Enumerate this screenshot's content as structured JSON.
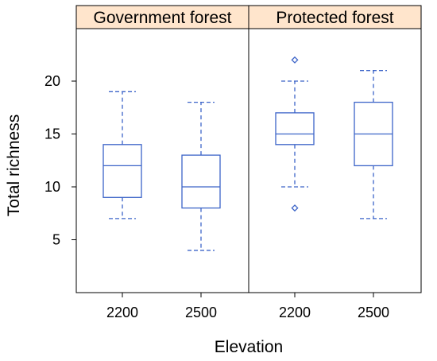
{
  "chart_data": {
    "type": "box",
    "xlabel": "Elevation",
    "ylabel": "Total richness",
    "ylim": [
      0,
      25
    ],
    "yticks": [
      5,
      10,
      15,
      20
    ],
    "grid": false,
    "categories": [
      "2200",
      "2500"
    ],
    "panels": [
      {
        "name": "Government forest",
        "boxes": [
          {
            "category": "2200",
            "min": 7,
            "q1": 9,
            "median": 12,
            "q3": 14,
            "max": 19,
            "outliers": []
          },
          {
            "category": "2500",
            "min": 4,
            "q1": 8,
            "median": 10,
            "q3": 13,
            "max": 18,
            "outliers": []
          }
        ]
      },
      {
        "name": "Protected forest",
        "boxes": [
          {
            "category": "2200",
            "min": 10,
            "q1": 14,
            "median": 15,
            "q3": 17,
            "max": 20,
            "outliers": [
              8,
              22
            ]
          },
          {
            "category": "2500",
            "min": 7,
            "q1": 12,
            "median": 15,
            "q3": 18,
            "max": 21,
            "outliers": []
          }
        ]
      }
    ],
    "colors": {
      "box": "#3c64c8",
      "strip": "#ffe5cc",
      "frame": "#000000"
    }
  }
}
